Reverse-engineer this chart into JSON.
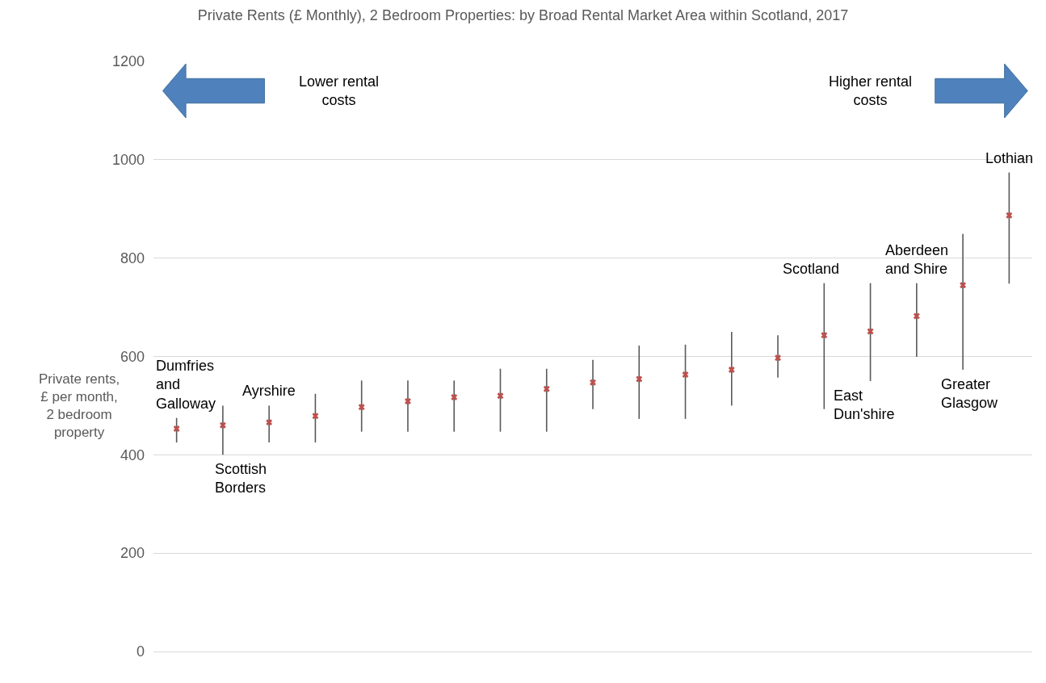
{
  "chart_data": {
    "type": "scatter",
    "title": "Private Rents (£ Monthly), 2 Bedroom Properties: by Broad Rental Market Area within Scotland, 2017",
    "ylabel": "Private rents,\n£ per month,\n2 bedroom\nproperty",
    "categories": [
      "Dumfries\nand\nGalloway",
      "Scottish\nBorders",
      "Ayrshire",
      null,
      null,
      null,
      null,
      null,
      null,
      null,
      null,
      null,
      null,
      null,
      "Scotland",
      "East\nDun'shire",
      "Aberdeen\nand Shire",
      "Greater\nGlasgow",
      "Lothian"
    ],
    "series": [
      {
        "color": "#c0504d",
        "values": [
          453,
          460,
          466,
          479,
          497,
          509,
          517,
          520,
          534,
          547,
          554,
          563,
          573,
          597,
          643,
          651,
          682,
          745,
          887
        ],
        "errors": [
          [
            425,
            475
          ],
          [
            400,
            500
          ],
          [
            425,
            500
          ],
          [
            425,
            524
          ],
          [
            447,
            551
          ],
          [
            447,
            551
          ],
          [
            447,
            551
          ],
          [
            447,
            575
          ],
          [
            447,
            575
          ],
          [
            493,
            593
          ],
          [
            473,
            622
          ],
          [
            473,
            624
          ],
          [
            500,
            650
          ],
          [
            557,
            643
          ],
          [
            493,
            749
          ],
          [
            550,
            749
          ],
          [
            599,
            749
          ],
          [
            573,
            849
          ],
          [
            748,
            974
          ]
        ]
      }
    ],
    "marker": "cross",
    "ylim": [
      0,
      1200
    ],
    "yticks": [
      0,
      200,
      400,
      600,
      800,
      1000,
      1200
    ],
    "grid": "y",
    "tick_labels": "y",
    "annotations": [
      "Lower rental\ncosts",
      "Higher rental\ncosts"
    ]
  }
}
